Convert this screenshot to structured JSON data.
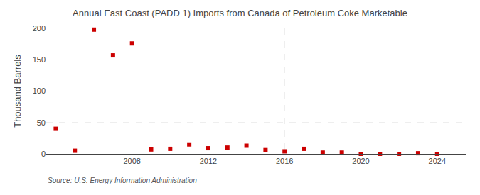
{
  "chart_data": {
    "type": "scatter",
    "title": "Annual East Coast (PADD 1) Imports from Canada of Petroleum Coke Marketable",
    "ylabel": "Thousand Barrels",
    "source": "Source: U.S. Energy Information Administration",
    "color": "#cc0000",
    "marker": "square",
    "x": [
      2004,
      2005,
      2006,
      2007,
      2008,
      2009,
      2010,
      2011,
      2012,
      2013,
      2014,
      2015,
      2016,
      2017,
      2018,
      2019,
      2020,
      2021,
      2022,
      2023,
      2024
    ],
    "values": [
      40,
      5,
      198,
      157,
      176,
      7,
      8,
      15,
      9,
      10,
      13,
      6,
      4,
      8,
      2,
      2,
      0,
      0,
      0,
      1,
      0
    ],
    "xlim": [
      2003.5,
      2025.5
    ],
    "ylim": [
      0,
      200
    ],
    "xticks": [
      2008,
      2012,
      2016,
      2020,
      2024
    ],
    "yticks": [
      0,
      50,
      100,
      150,
      200
    ],
    "grid": true
  }
}
